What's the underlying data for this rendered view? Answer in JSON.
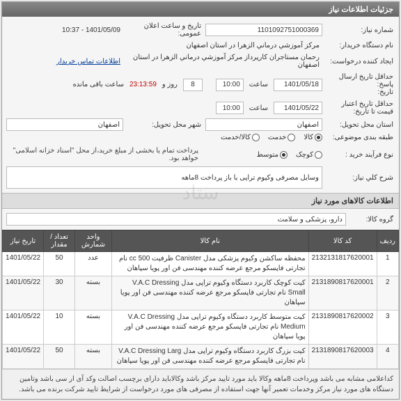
{
  "panel_title": "جزئیات اطلاعات نیاز",
  "fields": {
    "need_no_label": "شماره نیاز:",
    "need_no": "1101092751000369",
    "announce_label": "تاریخ و ساعت اعلان عمومی:",
    "announce": "1401/05/09 - 10:37",
    "buyer_label": "نام دستگاه خریدار:",
    "buyer": "مرکز آموزشي درماني الزهرا در استان اصفهان",
    "requester_label": "ایجاد کننده درخواست:",
    "requester": "رحمان مستاجران کارپرداز مرکز آموزشي درماني الزهرا در استان اصفهان",
    "contact_link": "اطلاعات تماس خریدار",
    "deadline_reply_label": "حداقل تاریخ ارسال پاسخ:\nتاریخ:",
    "deadline_date": "1401/05/18",
    "time_label": "ساعت",
    "deadline_time": "10:00",
    "remaining_prefix": "",
    "remaining_days": "8",
    "remaining_days_label": "روز و",
    "remaining_time": "23:13:59",
    "remaining_suffix": "ساعت باقی مانده",
    "valid_label": "حداقل تاریخ اعتبار\nقیمت تا تاریخ:",
    "valid_date": "1401/05/22",
    "valid_time": "10:00",
    "province_label": "استان محل تحویل:",
    "province": "اصفهان",
    "city_label": "شهر محل تحویل:",
    "city": "اصفهان",
    "classification_label": "طبقه بندی موضوعی:",
    "class_goods": "کالا",
    "class_service": "خدمت",
    "class_both": "کالا/خدمت",
    "process_label": "نوع فرآیند خرید :",
    "proc_small": "کوچک",
    "proc_medium": "متوسط",
    "payment_note": "پرداخت تمام یا بخشی از مبلغ خرید،از محل \"اسناد خزانه اسلامی\" خواهد بود.",
    "desc_label": "شرح کلي نیاز:",
    "desc": "وسایل مصرفی وکیوم تراپی با باز پرداخت 8ماهه"
  },
  "goods_section_title": "اطلاعات کالاهای مورد نیاز",
  "group_label": "گروه کالا:",
  "group_value": "دارو، پزشکی و سلامت",
  "table": {
    "columns": [
      "ردیف",
      "کد کالا",
      "نام کالا",
      "واحد شمارش",
      "تعداد / مقدار",
      "تاریخ نیاز"
    ],
    "rows": [
      [
        "1",
        "2132131817620001",
        "محفظه ساکشن وکیوم پزشکی مدل Canister ظرفیت cc 500 نام تجارتی فاپسکو مرجع عرضه کننده مهندسی فن اور پویا سپاهان",
        "عدد",
        "50",
        "1401/05/22"
      ],
      [
        "2",
        "2131890817620001",
        "کیت کوچک کاربرد دستگاه وکیوم تراپی مدل V.A.C Dressing Small نام تجارتی فاپسکو مرجع عرضه کننده مهندسی فن اور پویا سپاهان",
        "بسته",
        "30",
        "1401/05/22"
      ],
      [
        "3",
        "2131890817620002",
        "کیت متوسط کاربرد دستگاه وکیوم تراپی مدل V.A.C Dressing Medium نام تجارتی فاپسکو مرجع عرضه کننده مهندسی فن اور پویا سپاهان",
        "بسته",
        "10",
        "1401/05/22"
      ],
      [
        "4",
        "2131890817620003",
        "کیت بزرگ کاربرد دستگاه وکیوم تراپی مدل V.A.C Dressing Larg نام تجارتی فاپسکو مرجع عرضه کننده مهندسی فن اور پویا سپاهان",
        "بسته",
        "50",
        "1401/05/22"
      ]
    ]
  },
  "footer_note": "کداعلامی مشابه می باشد وپرداخت 8ماهه وکالا باید مورد تایید مرکز باشد وکالاباید دارای برچسب اصالت وکد آی ار سی باشد وتامین دستگاه های مورد نیاز مرکز وخدمات تعمیر آنها جهت استفاده از مصرفی های مورد درخواست از شرایط تایید شرکت برنده می باشد.",
  "watermark": "ستاد"
}
